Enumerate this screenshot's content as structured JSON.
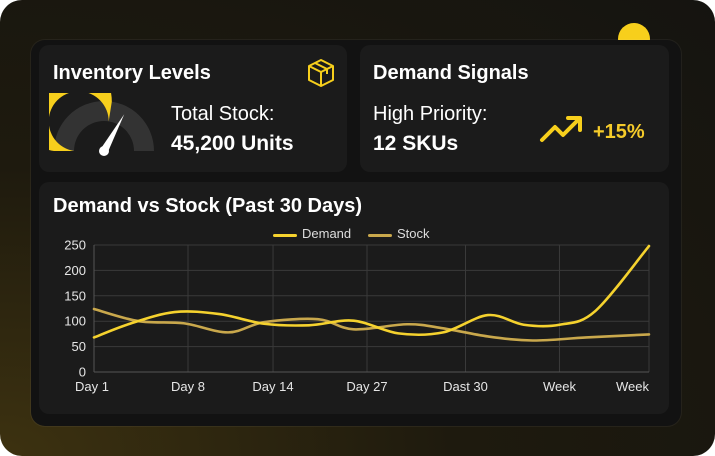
{
  "colors": {
    "accent": "#F7CF1C",
    "demand": "#F5D22E",
    "stock": "#C9A84C",
    "card": "#1B1B1B",
    "panel": "#121212"
  },
  "inventory": {
    "title": "Inventory Levels",
    "icon": "box-icon",
    "stock_label": "Total Stock:",
    "stock_value": "45,200 Units",
    "gauge_fill_fraction": 0.55
  },
  "demand": {
    "title": "Demand Signals",
    "priority_label": "High Priority:",
    "priority_value": "12 SKUs",
    "trend_icon": "trend-up-icon",
    "trend_value": "+15%"
  },
  "chart": {
    "title": "Demand vs Stock (Past 30 Days)"
  },
  "chart_data": {
    "type": "line",
    "title": "Demand vs Stock (Past 30 Days)",
    "categories": [
      "Day 1",
      "Day 8",
      "Day 14",
      "Day 27",
      "Dast 30",
      "Week",
      "Week"
    ],
    "yticks": [
      "0",
      "50",
      "100",
      "150",
      "200",
      "250"
    ],
    "ylim": [
      0,
      250
    ],
    "grid": true,
    "legend_position": "top-center",
    "series": [
      {
        "name": "Demand",
        "color": "#F5D22E",
        "points": [
          [
            0,
            68
          ],
          [
            0.4,
            95
          ],
          [
            0.9,
            118
          ],
          [
            1.4,
            114
          ],
          [
            1.9,
            95
          ],
          [
            2.4,
            92
          ],
          [
            2.9,
            101
          ],
          [
            3.4,
            76
          ],
          [
            3.9,
            78
          ],
          [
            4.4,
            112
          ],
          [
            4.8,
            93
          ],
          [
            5.2,
            93
          ],
          [
            5.6,
            120
          ],
          [
            6.2,
            248
          ]
        ]
      },
      {
        "name": "Stock",
        "color": "#C9A84C",
        "points": [
          [
            0,
            124
          ],
          [
            0.5,
            100
          ],
          [
            1,
            96
          ],
          [
            1.5,
            78
          ],
          [
            1.9,
            98
          ],
          [
            2.5,
            104
          ],
          [
            2.9,
            84
          ],
          [
            3.5,
            94
          ],
          [
            3.9,
            86
          ],
          [
            4.4,
            70
          ],
          [
            4.9,
            62
          ],
          [
            5.5,
            68
          ],
          [
            6.2,
            74
          ]
        ]
      }
    ]
  }
}
